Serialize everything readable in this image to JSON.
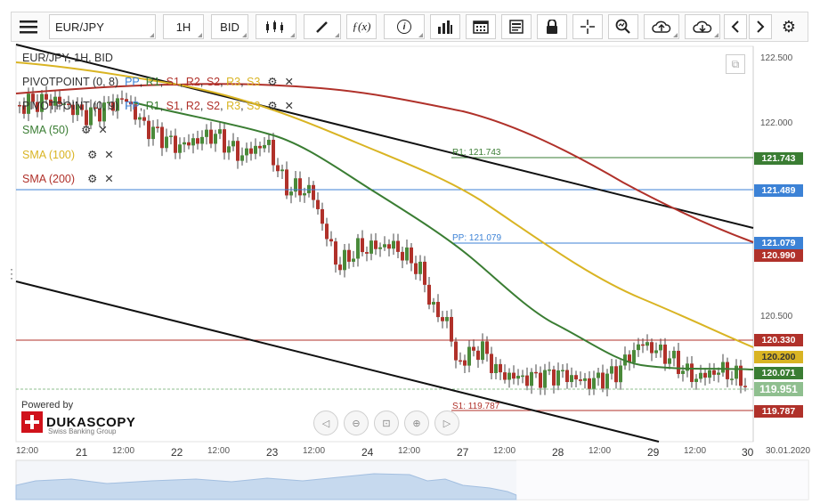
{
  "toolbar": {
    "symbol": "EUR/JPY",
    "timeframe": "1H",
    "price_side": "BID"
  },
  "legend": {
    "title": "EUR/JPY, 1H, BID",
    "pivot1": {
      "label": "PIVOTPOINT (0, 8)",
      "pp": "PP",
      "r1": "R1",
      "s1": "S1",
      "r2": "R2",
      "s2": "S2",
      "r3": "R3",
      "s3": "S3"
    },
    "pivot2": {
      "label": "PIVOTPOINT (0, 9)",
      "pp": "PP",
      "r1": "R1",
      "s1": "S1",
      "r2": "R2",
      "s2": "S2",
      "r3": "R3",
      "s3": "S3"
    },
    "sma50": "SMA (50)",
    "sma100": "SMA (100)",
    "sma200": "SMA (200)"
  },
  "levels": {
    "r1": "R1: 121.743",
    "pp": "PP: 121.079",
    "s1": "S1: 119.787"
  },
  "price_axis": [
    "122.500",
    "122.000",
    "120.500"
  ],
  "price_tags": {
    "r1": "121.743",
    "h_blue": "121.489",
    "pp": "121.079",
    "sma200": "120.990",
    "h_red": "120.330",
    "sma100": "120.200",
    "sma50": "120.071",
    "last": "119.951",
    "s1": "119.787"
  },
  "time_axis": [
    "12:00",
    "21",
    "12:00",
    "22",
    "12:00",
    "23",
    "12:00",
    "24",
    "12:00",
    "27",
    "12:00",
    "28",
    "12:00",
    "29",
    "12:00",
    "30",
    "30.01.2020"
  ],
  "branding": {
    "powered": "Powered by",
    "name": "DUKASCOPY",
    "sub": "Swiss Banking Group"
  },
  "colors": {
    "sma50": "#3a7d33",
    "sma100": "#d9b423",
    "sma200": "#b0312a",
    "level_blue": "#3c82d6",
    "candle_up": "#4a8a3a",
    "candle_down": "#b0312a",
    "last_tag": "#8fbf8f"
  }
}
